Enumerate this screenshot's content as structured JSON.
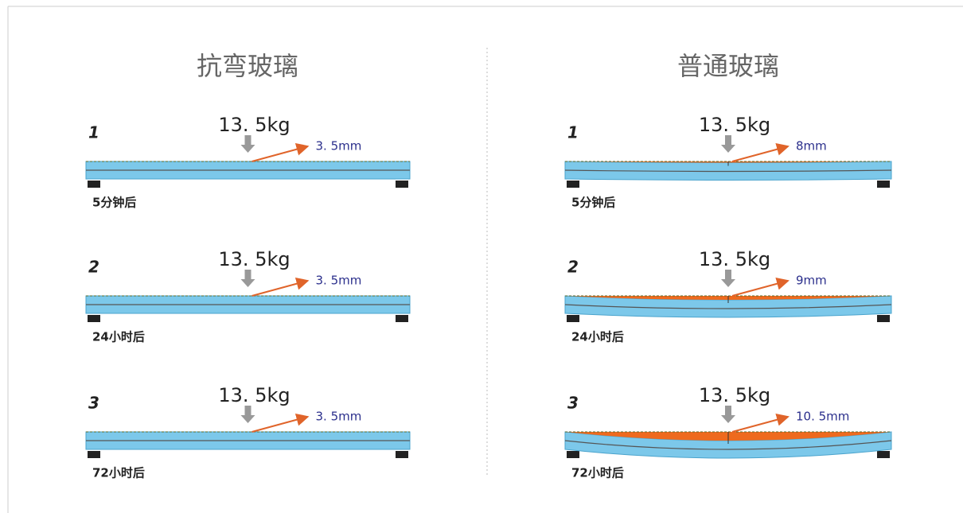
{
  "columns": [
    {
      "title": "抗弯玻璃",
      "rows": [
        {
          "step": "1",
          "load": "13. 5kg",
          "deflection": "3. 5mm",
          "time": "5分钟后"
        },
        {
          "step": "2",
          "load": "13. 5kg",
          "deflection": "3. 5mm",
          "time": "24小时后"
        },
        {
          "step": "3",
          "load": "13. 5kg",
          "deflection": "3. 5mm",
          "time": "72小时后"
        }
      ]
    },
    {
      "title": "普通玻璃",
      "rows": [
        {
          "step": "1",
          "load": "13. 5kg",
          "deflection": "8mm",
          "time": "5分钟后"
        },
        {
          "step": "2",
          "load": "13. 5kg",
          "deflection": "9mm",
          "time": "24小时后"
        },
        {
          "step": "3",
          "load": "13. 5kg",
          "deflection": "10. 5mm",
          "time": "72小时后"
        }
      ]
    }
  ]
}
